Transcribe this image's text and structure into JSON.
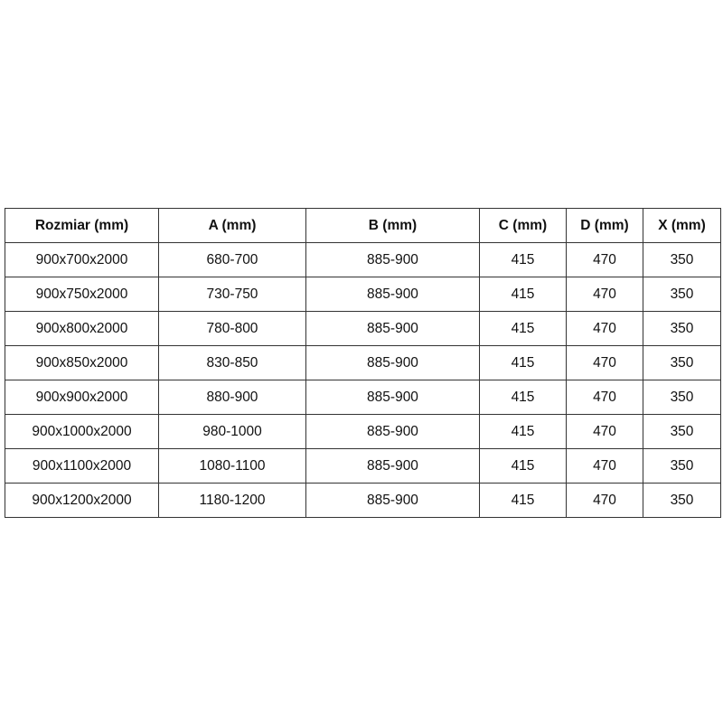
{
  "table": {
    "headers": [
      "Rozmiar (mm)",
      "A (mm)",
      "B (mm)",
      "C (mm)",
      "D (mm)",
      "X (mm)"
    ],
    "rows": [
      [
        "900x700x2000",
        "680-700",
        "885-900",
        "415",
        "470",
        "350"
      ],
      [
        "900x750x2000",
        "730-750",
        "885-900",
        "415",
        "470",
        "350"
      ],
      [
        "900x800x2000",
        "780-800",
        "885-900",
        "415",
        "470",
        "350"
      ],
      [
        "900x850x2000",
        "830-850",
        "885-900",
        "415",
        "470",
        "350"
      ],
      [
        "900x900x2000",
        "880-900",
        "885-900",
        "415",
        "470",
        "350"
      ],
      [
        "900x1000x2000",
        "980-1000",
        "885-900",
        "415",
        "470",
        "350"
      ],
      [
        "900x1100x2000",
        "1080-1100",
        "885-900",
        "415",
        "470",
        "350"
      ],
      [
        "900x1200x2000",
        "1180-1200",
        "885-900",
        "415",
        "470",
        "350"
      ]
    ]
  }
}
